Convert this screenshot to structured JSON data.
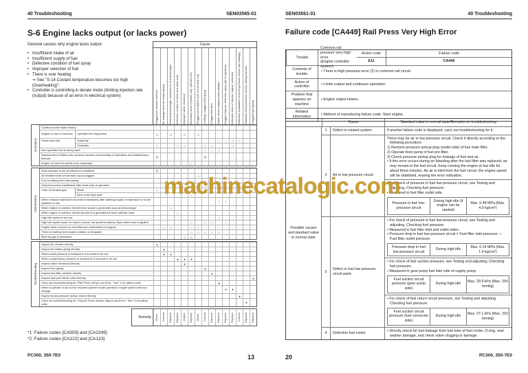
{
  "watermark": {
    "text": "machinecatalogic.com",
    "color": "#c49a23",
    "accent": "#b23428"
  },
  "left_page": {
    "header_left": "40 Troubleshooting",
    "header_right": "SEN03565-01",
    "title": "S-6 Engine lacks output (or lacks power)",
    "intro": "General causes why engine lacks output",
    "bullets": [
      {
        "b": 1,
        "t": "Insufficient intake of air"
      },
      {
        "b": 1,
        "t": "Insufficient supply of fuel"
      },
      {
        "b": 1,
        "t": "Defective condition of fuel spray"
      },
      {
        "b": 1,
        "t": "Improper selection of fuel"
      },
      {
        "b": 1,
        "t": "There is over heating"
      },
      {
        "b": 0,
        "t": "⇒ See \"S-14 Coolant temperature becomes too high (Overheating)\"."
      },
      {
        "b": 1,
        "t": "Controller is controlling in derate mode (limiting injection rate (output) because of an error in electrical system)"
      }
    ],
    "matrix": {
      "cause_header": "Cause",
      "columns": [
        "Clogged air cleaner element",
        "Air leakage from air intake piping",
        "Seized turbocharger, interference of turbocharger",
        "Defective contact of valve and valve seat",
        "Improper valve clearance",
        "Excessive wear of piston ring, cylinder liner",
        "Clogged air breather hole of fuel tank cap",
        "Leaking, clogged fuel piping",
        "Clogged fuel filter",
        "Stuck, seized supply pump plunger",
        "Clogged injector, defective spray (dirt in injection)",
        "Defective drive of injector (signal, solenoid)",
        "Defective installation of boost pressure sensor (air leakage)",
        "Defective boost pressure sensor, wiring harness",
        "Clogged spill piping"
      ],
      "sections": [
        {
          "label": "Questions",
          "rows": [
            {
              "l2": "Confirm recent repair history",
              "cells": "..............."
            },
            {
              "l1": "Degree of use of machine",
              "l2": "Operated for long period",
              "h": 2,
              "cells": "t.t.t.t........"
            },
            {
              "l1": "Power was lost",
              "l2": "Suddenly",
              "cells": ".........oooo.."
            },
            {
              "l1c": true,
              "l2": "Gradually",
              "cells": "o..oo..oo..o..."
            },
            {
              "l2": "Non specified fuel is being used",
              "cells": ".......ooo....."
            },
            {
              "l2": "Replacement of filters has not been carried out according to Operation and Maintenance Manual",
              "h": 2,
              "cells": "O......O......."
            },
            {
              "l2": "Engine oil must be added more frequently",
              "cells": ".....o........."
            }
          ]
        },
        {
          "label": "Check items",
          "rows": [
            {
              "l2": "Dust indicator is red (if indicator is installed)",
              "cells": "O.............."
            },
            {
              "l2": "Air breather hole of fuel tank cap is clogged",
              "cells": "......o........"
            },
            {
              "l2": "Fuel is leaking from fuel piping",
              "cells": ".......o......."
            },
            {
              "l2": "Output becomes insufficient after short stop of operation",
              "cells": "......oo......."
            },
            {
              "l1": "Color of exhaust gas",
              "l2": "Black",
              "cells": "o.........o...."
            },
            {
              "l1c": true,
              "l2": "Blue under light load",
              "cells": ".....o........."
            },
            {
              "l2": "When exhaust manifold is touched immediately after starting engine, temperature of some cylinders is low",
              "h": 2,
              "cells": ".........oo...."
            },
            {
              "l2": "When engine is cranked, interference sound is generated around turbocharger",
              "cells": "..o............"
            },
            {
              "l2": "When engine is cranked, abnormal sound is generated around cylinder head",
              "cells": "...o..........."
            },
            {
              "l2": "High idle speed is too low",
              "cells": ".........o....."
            },
            {
              "l2": "High idle speed under no load is normal, but speed suddenly drops when load is applied",
              "cells": ".....o.oo.o...."
            },
            {
              "l2": "Engine does not pick up smoothly and combustion is irregular",
              "cells": ".oo..oo..o....."
            },
            {
              "l2": "There is hunting from engine (rotation is irregular)",
              "cells": ".....ooooo....."
            },
            {
              "l2": "Blow-by gas is excessive",
              "cells": "....oo........."
            }
          ]
        },
        {
          "label": "Troubleshooting",
          "rows": [
            {
              "l2": "Inspect air cleaner directly",
              "cells": "b.............."
            },
            {
              "l2": "Inspect air intake piping directly",
              "cells": ".b............."
            },
            {
              "l2": "When boost pressure is measured, it is found to be low",
              "cells": ".bb............"
            },
            {
              "l2": "When compression pressure is measured, it is found to be low",
              "cells": "...bbb........."
            },
            {
              "l2": "Inspect valve clearance directly",
              "cells": "....b.........."
            },
            {
              "l2": "Inspect fuel piping",
              "cells": ".......b......."
            },
            {
              "l2": "Inspect fuel filter, strainer directly",
              "cells": "........b......"
            },
            {
              "l2": "Inspect spill port check valve directly",
              "cells": "..............b"
            },
            {
              "l2": "Carry out troubleshooting for \"Rail Press (Very) Low Error.\" See *1 for failure code.",
              "cells": ".........b....."
            },
            {
              "l2": "When a cylinder is cut out for reduced cylinder mode operation, engine speed does not change",
              "h": 2,
              "cells": "..........bb..."
            },
            {
              "l2": "Inspect boost pressure sensor mount directly",
              "cells": "............b.."
            },
            {
              "l2": "Carry out troubleshooting for \"Chg Air Press Sensor High (Low) Error.\" See *2 for failure code.",
              "h": 2,
              "cells": ".............b."
            }
          ]
        }
      ],
      "remedy_label": "Remedy",
      "remedies": [
        "Clean",
        "Correct",
        "Replace",
        "Replace",
        "Adjust",
        "Replace",
        "Clean",
        "Correct",
        "Replace",
        "Replace",
        "Replace",
        "Replace",
        "Correct",
        "Replace",
        "Replace"
      ]
    },
    "footnotes": [
      "*1: Failure codes [CA559] and [CA2249]",
      "*2: Failure codes [CA122] and [CA123]"
    ],
    "footer_left": "PC300, 350-7E0",
    "page_number": "13"
  },
  "right_page": {
    "header_left": "SEN03561-01",
    "header_right": "40 Troubleshooting",
    "title": "Failure code [CA449] Rail Press Very High Error",
    "info_table": {
      "action_code_label": "Action code",
      "action_code": "E11",
      "failure_code_label": "Failure code",
      "failure_code": "CA449",
      "trouble_label": "Trouble",
      "trouble_text": "Common rail pressure very high error\n(Engine controller system)",
      "rows": [
        {
          "label": "Contents of trouble",
          "text": "• There is high pressure error (2) in common rail circuit."
        },
        {
          "label": "Action of controller",
          "text": "• Limits output and continues operation."
        },
        {
          "label": "Problem that appears on machine",
          "text": "• Engine output lowers."
        },
        {
          "label": "Related information",
          "text": "• Method of reproducing failure code: Start engine."
        }
      ]
    },
    "cause_table": {
      "col_cause": "Cause",
      "col_standard": "Standard value in normal state/Remarks on troubleshooting",
      "side_label": "Possible causes and standard value in normal state",
      "rows": [
        {
          "num": "1",
          "cause": "Defect in related system",
          "blocks": [
            {
              "type": "text",
              "lines": [
                "If another failure code is displayed, carry out troubleshooting for it."
              ]
            }
          ]
        },
        {
          "num": "2",
          "cause": "Air in low pressure circuit",
          "blocks": [
            {
              "type": "text",
              "lines": [
                "There may be air in low pressure circuit. Check it directly according to the following procedure.",
                "1) Remove pressure pickup plug (outlet side) of fuel main filter.",
                "2) Operate feed pump of fuel pre-filter.",
                "3) Check pressure pickup plug for leakage of fuel and air.",
                "• If this error occurs during air bleeding after the fuel filter was replaced, air may remain in the fuel circuit. Keep running the engine at low idle for about three minutes. As air is bled from the fuel circuit, the engine speed will be stabilized, erasing the error indication."
              ]
            },
            {
              "type": "sub",
              "bullets": [
                "• For check of pressure in fuel low pressure circuit, see Testing and adjusting, Checking fuel pressure.",
                "• Measured in fuel filter outlet side."
              ],
              "table": {
                "item": "Pressure in fuel low-pressure circuit",
                "condition": "During high idle (if engine can be started)",
                "value": "Max. 0.48 MPa (Max. 4.9 kg/cm²)"
              }
            }
          ]
        },
        {
          "num": "3",
          "cause": "Defect in fuel low pressure circuit parts",
          "blocks": [
            {
              "type": "sub",
              "bullets": [
                "• For check of pressure in fuel low pressure circuit, see Testing and adjusting, Checking fuel pressure.",
                "• Measured in fuel filter inlet and outlet sides.",
                "• Pressure drop in fuel low-pressure circuit = Fuel filter inlet pressure — Fuel filter outlet pressure"
              ],
              "table": {
                "item": "Pressure drop in fuel low-pressure circuit",
                "condition": "During high idle",
                "value": "Max. 0.14 MPa (Max. 1.4 kg/cm²)"
              }
            },
            {
              "type": "sub",
              "bullets": [
                "• For check of fuel suction pressure, see Testing and adjusting, Checking fuel pressure.",
                "• Measured in gear pump fuel inlet side of supply pump."
              ],
              "table": {
                "item": "Fuel suction circuit pressure (gear pump side)",
                "condition": "During high idle",
                "value": "Max. 33.9 kPa (Max. 254 mmHg)"
              }
            },
            {
              "type": "sub",
              "bullets": [
                "• For check of fuel return circuit pressure, see Testing and adjusting, Checking fuel pressure."
              ],
              "table": {
                "item": "Fuel suction circuit pressure (fuel connector side)",
                "condition": "During high idle",
                "value": "Max. 27.1 kPa (Max. 203 mmHg)"
              }
            }
          ]
        },
        {
          "num": "4",
          "cause": "Defective fuel cooler",
          "blocks": [
            {
              "type": "text",
              "lines": [
                "• Directly check for fuel leakage from fuel tube of fuel cooler, O-ring, seal washer damage, and check valve clogging or damage."
              ]
            }
          ]
        }
      ]
    },
    "page_number": "20",
    "footer_right": "PC300, 350-7E0"
  }
}
